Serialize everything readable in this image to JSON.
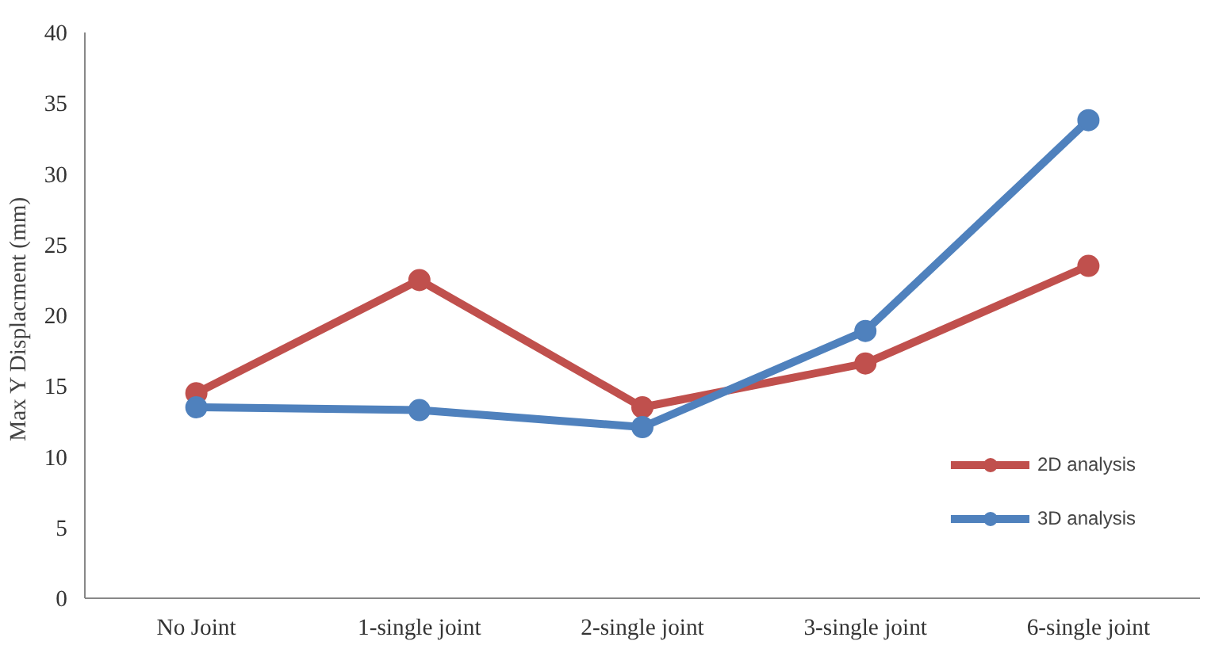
{
  "chart_data": {
    "type": "line",
    "ylabel": "Max Y Displacment  (mm)",
    "categories": [
      "No Joint",
      "1-single joint",
      "2-single joint",
      "3-single joint",
      "6-single joint"
    ],
    "series": [
      {
        "name": "2D analysis",
        "color": "#c0504d",
        "values": [
          14.5,
          22.5,
          13.5,
          16.6,
          23.5
        ]
      },
      {
        "name": "3D analysis",
        "color": "#4f81bd",
        "values": [
          13.5,
          13.3,
          12.1,
          18.9,
          33.8
        ]
      }
    ],
    "ylim": [
      0,
      40
    ],
    "yticks": [
      0,
      5,
      10,
      15,
      20,
      25,
      30,
      35,
      40
    ],
    "grid": false,
    "legend": "bottom right",
    "marker": "circle",
    "line_style": "solid"
  }
}
